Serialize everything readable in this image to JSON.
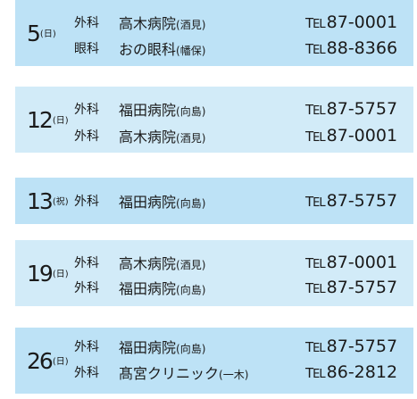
{
  "tel_label_main": "T",
  "tel_label_sub": "EL",
  "entries": [
    {
      "day": "5",
      "dow": "日",
      "rows": [
        {
          "dept": "外科",
          "hospital": "高木病院",
          "area": "酒見",
          "tel": "87-0001"
        },
        {
          "dept": "眼科",
          "hospital": "おの眼科",
          "area": "幡保",
          "tel": "88-8366"
        }
      ]
    },
    {
      "day": "12",
      "dow": "日",
      "rows": [
        {
          "dept": "外科",
          "hospital": "福田病院",
          "area": "向島",
          "tel": "87-5757"
        },
        {
          "dept": "外科",
          "hospital": "高木病院",
          "area": "酒見",
          "tel": "87-0001"
        }
      ]
    },
    {
      "day": "13",
      "dow": "祝",
      "rows": [
        {
          "dept": "外科",
          "hospital": "福田病院",
          "area": "向島",
          "tel": "87-5757"
        }
      ]
    },
    {
      "day": "19",
      "dow": "日",
      "rows": [
        {
          "dept": "外科",
          "hospital": "高木病院",
          "area": "酒見",
          "tel": "87-0001"
        },
        {
          "dept": "外科",
          "hospital": "福田病院",
          "area": "向島",
          "tel": "87-5757"
        }
      ]
    },
    {
      "day": "26",
      "dow": "日",
      "rows": [
        {
          "dept": "外科",
          "hospital": "福田病院",
          "area": "向島",
          "tel": "87-5757"
        },
        {
          "dept": "外科",
          "hospital": "髙宮クリニック",
          "area": "一木",
          "tel": "86-2812"
        }
      ]
    }
  ]
}
